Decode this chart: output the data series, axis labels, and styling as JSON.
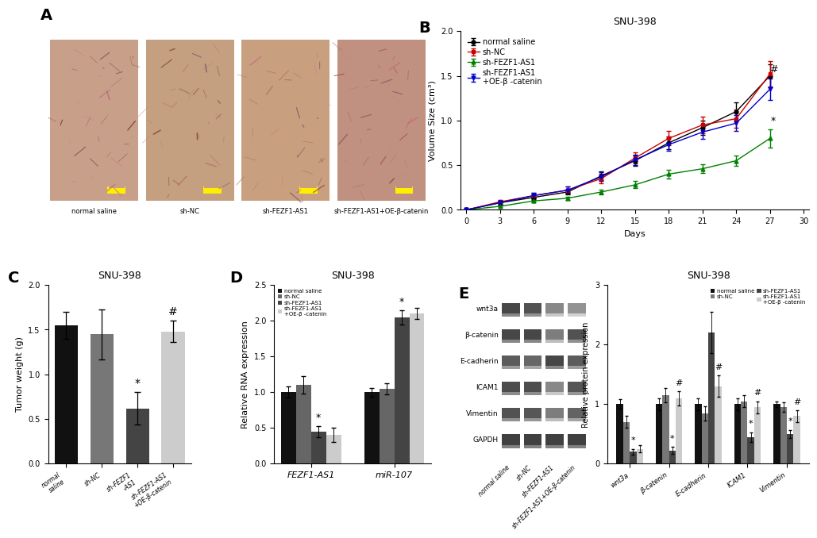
{
  "title_B": "SNU-398",
  "title_C": "SNU-398",
  "title_D": "SNU-398",
  "title_E": "SNU-398",
  "panel_B": {
    "days_plot": [
      0,
      3,
      6,
      9,
      12,
      15,
      18,
      21,
      24,
      27
    ],
    "ns_vals": [
      0.0,
      0.08,
      0.14,
      0.2,
      0.38,
      0.55,
      0.75,
      0.92,
      1.1,
      1.5
    ],
    "shnc_vals": [
      0.0,
      0.09,
      0.16,
      0.22,
      0.35,
      0.58,
      0.8,
      0.95,
      1.02,
      1.52
    ],
    "shfezf1_vals": [
      0.0,
      0.04,
      0.1,
      0.13,
      0.2,
      0.28,
      0.4,
      0.46,
      0.55,
      0.8
    ],
    "shfezf1oe_vals": [
      0.0,
      0.08,
      0.16,
      0.22,
      0.37,
      0.56,
      0.73,
      0.87,
      0.97,
      1.35
    ],
    "ns_err": [
      0,
      0.02,
      0.03,
      0.03,
      0.05,
      0.06,
      0.07,
      0.08,
      0.1,
      0.13
    ],
    "shnc_err": [
      0,
      0.02,
      0.03,
      0.04,
      0.05,
      0.06,
      0.08,
      0.09,
      0.1,
      0.14
    ],
    "shfezf1_err": [
      0,
      0.01,
      0.02,
      0.02,
      0.03,
      0.04,
      0.05,
      0.05,
      0.06,
      0.1
    ],
    "shfezf1oe_err": [
      0,
      0.02,
      0.03,
      0.04,
      0.05,
      0.06,
      0.07,
      0.08,
      0.09,
      0.12
    ],
    "ylabel": "Volume Size (cm³)",
    "xlabel": "Days",
    "ylim": [
      0.0,
      2.0
    ],
    "yticks": [
      0.0,
      0.5,
      1.0,
      1.5,
      2.0
    ],
    "xticks": [
      0,
      3,
      6,
      9,
      12,
      15,
      18,
      21,
      24,
      27,
      30
    ]
  },
  "panel_C": {
    "values": [
      1.55,
      1.45,
      0.62,
      1.48
    ],
    "errors": [
      0.15,
      0.28,
      0.18,
      0.12
    ],
    "colors": [
      "#111111",
      "#777777",
      "#444444",
      "#cccccc"
    ],
    "ylabel": "Tumor weight (g)",
    "ylim": [
      0.0,
      2.0
    ],
    "yticks": [
      0.0,
      0.5,
      1.0,
      1.5,
      2.0
    ],
    "xlabels": [
      "normal saline",
      "sh-NC",
      "sh-FEZF1-AS1",
      "sh-FEZF1-AS1+OE-β-catenin"
    ],
    "star_idx": 2,
    "hash_idx": 3
  },
  "panel_D": {
    "groups": [
      "FEZF1-AS1",
      "miR-107"
    ],
    "legend_labels": [
      "normal saline",
      "sh-NC",
      "sh-FEZF1-AS1",
      "sh-FEZF1-AS1\n+OE-β -catenin"
    ],
    "values_FEZF1": [
      1.0,
      1.1,
      0.45,
      0.4
    ],
    "values_miR107": [
      1.0,
      1.05,
      2.05,
      2.1
    ],
    "errors_FEZF1": [
      0.08,
      0.12,
      0.08,
      0.1
    ],
    "errors_miR107": [
      0.06,
      0.08,
      0.1,
      0.08
    ],
    "colors": [
      "#111111",
      "#666666",
      "#444444",
      "#cccccc"
    ],
    "ylabel": "Relative RNA expression",
    "ylim": [
      0.0,
      2.5
    ],
    "yticks": [
      0.0,
      0.5,
      1.0,
      1.5,
      2.0,
      2.5
    ]
  },
  "panel_E_bar": {
    "proteins": [
      "wnt3a",
      "β-catenin",
      "E-cadherin",
      "ICAM1",
      "Vimentin"
    ],
    "legend_labels": [
      "normal saline",
      "sh-NC",
      "sh-FEZF1-AS1",
      "sh-FEZF1-AS1\n+OE-β -catenin"
    ],
    "colors": [
      "#111111",
      "#777777",
      "#444444",
      "#cccccc"
    ],
    "values_wnt3a": [
      1.0,
      0.7,
      0.2,
      0.25
    ],
    "values_bcatenin": [
      1.0,
      1.15,
      0.22,
      1.1
    ],
    "values_ecadherin": [
      1.0,
      0.85,
      2.2,
      1.3
    ],
    "values_icam1": [
      1.0,
      1.05,
      0.45,
      0.95
    ],
    "values_vimentin": [
      1.0,
      0.95,
      0.5,
      0.8
    ],
    "errors_wnt3a": [
      0.08,
      0.1,
      0.05,
      0.06
    ],
    "errors_bcatenin": [
      0.1,
      0.12,
      0.06,
      0.12
    ],
    "errors_ecadherin": [
      0.1,
      0.12,
      0.35,
      0.18
    ],
    "errors_icam1": [
      0.1,
      0.1,
      0.08,
      0.1
    ],
    "errors_vimentin": [
      0.05,
      0.08,
      0.07,
      0.1
    ],
    "ylabel": "Relative protein expression",
    "ylim": [
      0.0,
      3.0
    ],
    "yticks": [
      0,
      1,
      2,
      3
    ],
    "annotations": {
      "wnt3a": [
        null,
        null,
        "*",
        null
      ],
      "bcatenin": [
        null,
        null,
        "*",
        "#"
      ],
      "ecadherin": [
        null,
        null,
        null,
        "#"
      ],
      "icam1": [
        null,
        null,
        "*",
        "#"
      ],
      "vimentin": [
        null,
        null,
        "*",
        "#"
      ]
    }
  },
  "colors": {
    "normal_saline": "#000000",
    "sh_NC": "#cc0000",
    "sh_FEZF1": "#008000",
    "sh_FEZF1_OE": "#0000cc"
  },
  "panel_labels_fontsize": 14,
  "axis_fontsize": 8,
  "tick_fontsize": 7,
  "legend_fontsize": 7,
  "title_fontsize": 9
}
